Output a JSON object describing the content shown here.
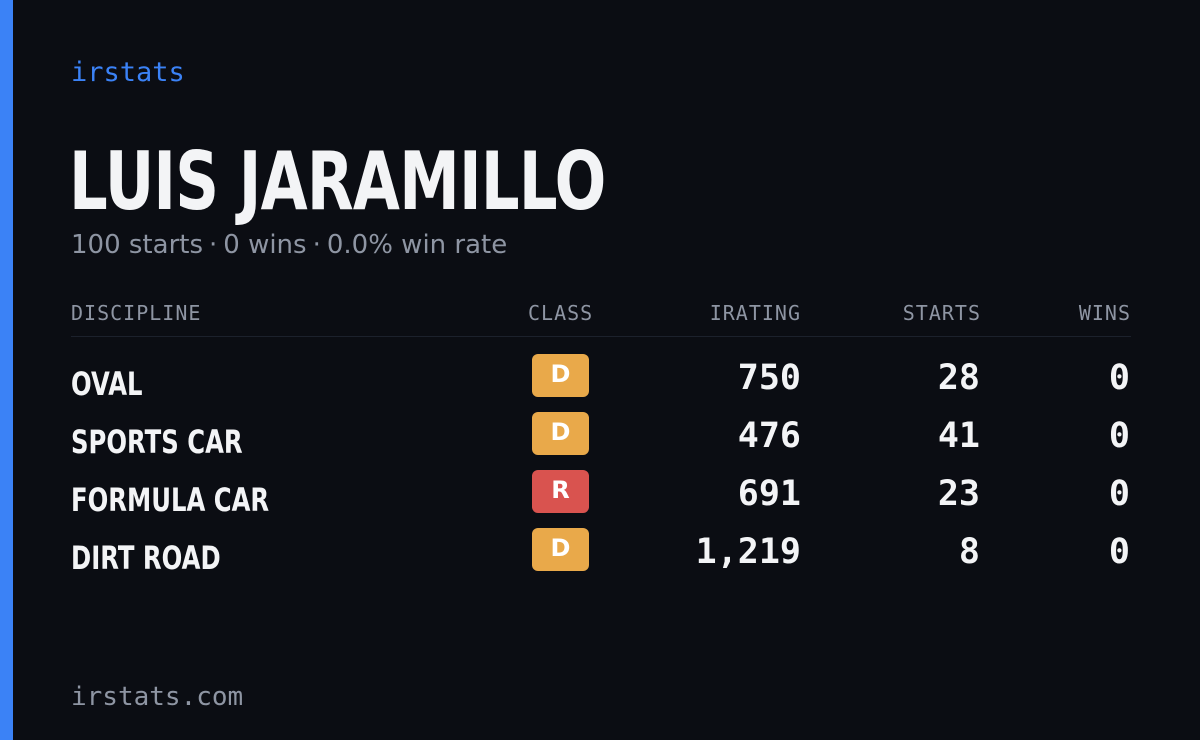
{
  "brand": "irstats",
  "player": {
    "name": "LUIS JARAMILLO",
    "starts_text": "100 starts",
    "wins_text": "0 wins",
    "win_rate_text": "0.0% win rate",
    "separator": "·"
  },
  "table": {
    "headers": {
      "discipline": "DISCIPLINE",
      "class": "CLASS",
      "irating": "IRATING",
      "starts": "STARTS",
      "wins": "WINS"
    },
    "rows": [
      {
        "discipline": "OVAL",
        "class": "D",
        "class_color": "#e9a94a",
        "irating": "750",
        "starts": "28",
        "wins": "0"
      },
      {
        "discipline": "SPORTS CAR",
        "class": "D",
        "class_color": "#e9a94a",
        "irating": "476",
        "starts": "41",
        "wins": "0"
      },
      {
        "discipline": "FORMULA CAR",
        "class": "R",
        "class_color": "#d9534f",
        "irating": "691",
        "starts": "23",
        "wins": "0"
      },
      {
        "discipline": "DIRT ROAD",
        "class": "D",
        "class_color": "#e9a94a",
        "irating": "1,219",
        "starts": "8",
        "wins": "0"
      }
    ]
  },
  "footer": "irstats.com",
  "colors": {
    "accent": "#3b82f6",
    "background": "#0b0d13",
    "class_d": "#e9a94a",
    "class_r": "#d9534f"
  }
}
